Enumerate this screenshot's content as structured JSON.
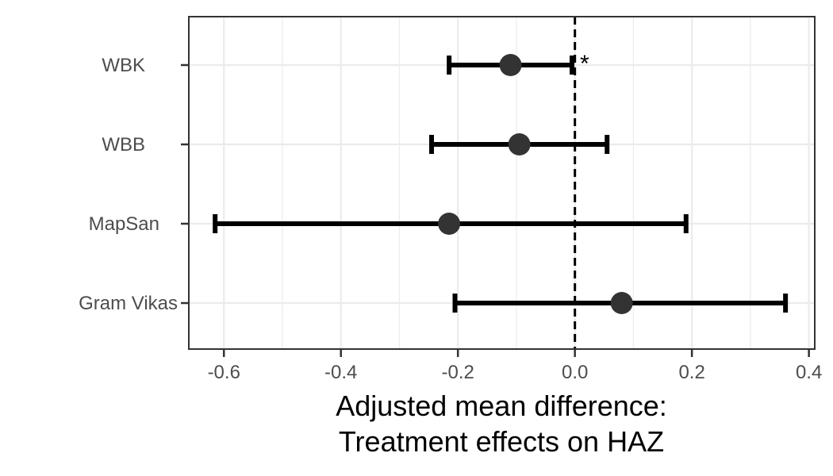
{
  "chart_data": {
    "type": "scatter",
    "subtype": "forest-plot",
    "title": "",
    "xlabel_lines": [
      "Adjusted mean difference:",
      "Treatment effects on HAZ"
    ],
    "ylabel": "",
    "xlim": [
      -0.66,
      0.41
    ],
    "xticks": [
      -0.6,
      -0.4,
      -0.2,
      0.0,
      0.2,
      0.4
    ],
    "xtick_labels": [
      "-0.6",
      "-0.4",
      "-0.2",
      "0.0",
      "0.2",
      "0.4"
    ],
    "reference_line": {
      "x": 0.0,
      "style": "dashed"
    },
    "grid": true,
    "categories": [
      "WBK",
      "WBB",
      "MapSan",
      "Gram Vikas"
    ],
    "estimates": [
      -0.11,
      -0.095,
      -0.215,
      0.08
    ],
    "ci_lower": [
      -0.215,
      -0.245,
      -0.615,
      -0.205
    ],
    "ci_upper": [
      -0.005,
      0.055,
      0.19,
      0.36
    ],
    "annotations": [
      {
        "category": "WBK",
        "text": "*"
      }
    ],
    "colors": {
      "point": "#333333",
      "errorbar": "#000000",
      "grid": "#ebebeb",
      "panel_border": "#333333"
    }
  }
}
